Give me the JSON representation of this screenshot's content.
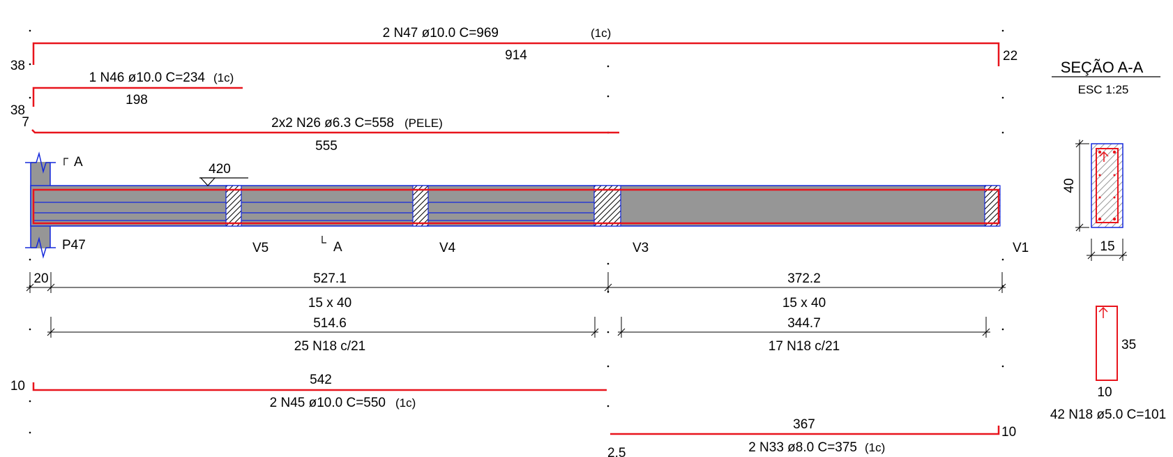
{
  "colors": {
    "rebar": "#e8141c",
    "outline": "#1428dc",
    "concrete": "#969696",
    "line": "#000000",
    "background": "#ffffff"
  },
  "bars_top": {
    "n47": {
      "label": "2 N47 ø10.0 C=969",
      "tag": "(1c)",
      "length": "914",
      "hook_left": "38",
      "hook_right": "22"
    },
    "n46": {
      "label": "1 N46 ø10.0 C=234",
      "tag": "(1c)",
      "length": "198",
      "hook_left": "38"
    },
    "n26": {
      "label": "2x2 N26 ø6.3 C=558",
      "tag": "(PELE)",
      "length": "555",
      "hook_left": "7"
    }
  },
  "beam": {
    "support_level": "420",
    "section_mark": "A",
    "supports": [
      "P47",
      "V5",
      "V4",
      "V3",
      "V1"
    ]
  },
  "dimensions": {
    "support_width": "20",
    "span1": "527.1",
    "span2": "372.2",
    "section1": "15 x 40",
    "section2": "15 x 40",
    "stirrup_len1": "514.6",
    "stirrup_len2": "344.7",
    "stirrups1": "25 N18 c/21",
    "stirrups2": "17 N18 c/21"
  },
  "bars_bottom": {
    "n45": {
      "label": "2 N45 ø10.0 C=550",
      "tag": "(1c)",
      "length": "542",
      "hook_left": "10"
    },
    "n33": {
      "label": "2 N33 ø8.0 C=375",
      "tag": "(1c)",
      "length": "367",
      "hook_right": "10",
      "offset": "2.5"
    }
  },
  "section": {
    "title": "SEÇÃO A-A",
    "scale": "ESC 1:25",
    "height": "40",
    "width": "15"
  },
  "stirrup_detail": {
    "height": "35",
    "width": "10",
    "label": "42 N18 ø5.0 C=101"
  }
}
